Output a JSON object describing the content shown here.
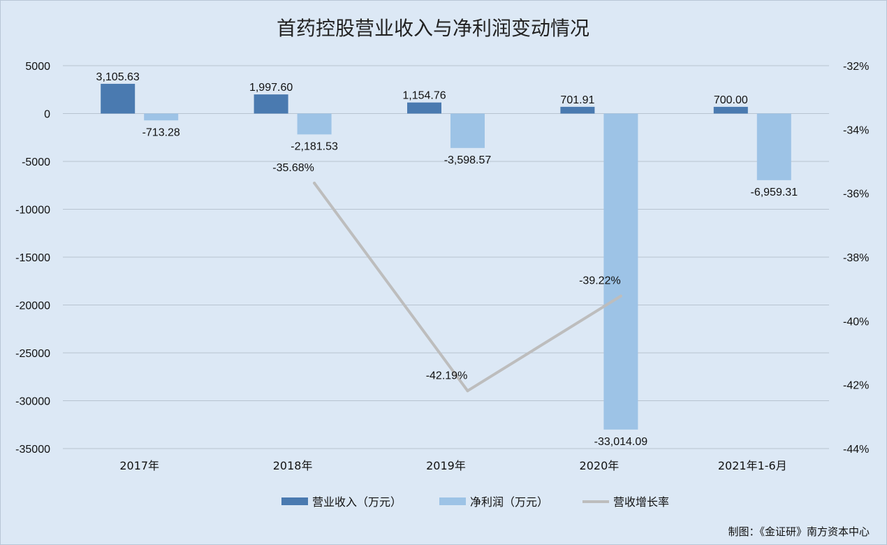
{
  "chart_data": {
    "type": "bar",
    "title": "首药控股营业收入与净利润变动情况",
    "categories": [
      "2017年",
      "2018年",
      "2019年",
      "2020年",
      "2021年1-6月"
    ],
    "series": [
      {
        "name": "营业收入（万元）",
        "type": "bar",
        "axis": "left",
        "color": "#4a7ab0",
        "values": [
          3105.63,
          1997.6,
          1154.76,
          701.91,
          700.0
        ],
        "labels": [
          "3,105.63",
          "1,997.60",
          "1,154.76",
          "701.91",
          "700.00"
        ]
      },
      {
        "name": "净利润（万元）",
        "type": "bar",
        "axis": "left",
        "color": "#9dc3e6",
        "values": [
          -713.28,
          -2181.53,
          -3598.57,
          -33014.09,
          -6959.31
        ],
        "labels": [
          "-713.28",
          "-2,181.53",
          "-3,598.57",
          "-33,014.09",
          "-6,959.31"
        ]
      },
      {
        "name": "营收增长率",
        "type": "line",
        "axis": "right",
        "color": "#bdbdbd",
        "values": [
          null,
          -35.68,
          -42.19,
          -39.22,
          null
        ],
        "labels": [
          "",
          "-35.68%",
          "-42.19%",
          "-39.22%",
          ""
        ]
      }
    ],
    "y_left": {
      "ylim": [
        -35000,
        5000
      ],
      "ticks": [
        5000,
        0,
        -5000,
        -10000,
        -15000,
        -20000,
        -25000,
        -30000,
        -35000
      ],
      "tick_labels": [
        "5000",
        "0",
        "-5000",
        "-10000",
        "-15000",
        "-20000",
        "-25000",
        "-30000",
        "-35000"
      ]
    },
    "y_right": {
      "ylim": [
        -44,
        -32
      ],
      "ticks": [
        -32,
        -34,
        -36,
        -38,
        -40,
        -42,
        -44
      ],
      "tick_labels": [
        "-32%",
        "-34%",
        "-36%",
        "-38%",
        "-40%",
        "-42%",
        "-44%"
      ]
    },
    "grid": true,
    "legend_position": "bottom"
  },
  "credit": "制图：《金证研》南方资本中心"
}
